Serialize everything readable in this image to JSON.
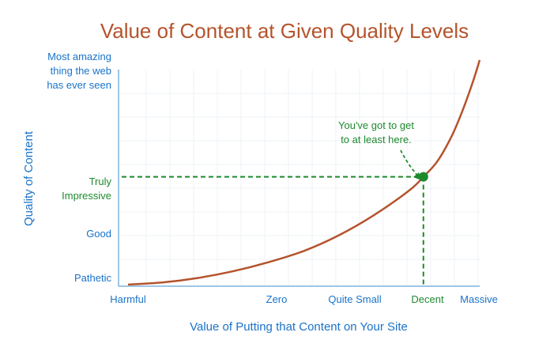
{
  "chart_data": {
    "type": "line",
    "title": "Value of Content at Given Quality Levels",
    "xlabel": "Value of Putting that Content on Your Site",
    "ylabel": "Quality of Content",
    "x_tick_labels": [
      "Harmful",
      "Zero",
      "Quite Small",
      "Decent",
      "Massive"
    ],
    "y_tick_labels": [
      [
        "Most amazing",
        "thing the web",
        "has ever seen"
      ],
      [
        "Truly",
        "Impressive"
      ],
      [
        "Good"
      ],
      [
        "Pathetic"
      ]
    ],
    "grid": true,
    "series": [
      {
        "points": [
          {
            "x": 0.0,
            "y": 0.0
          },
          {
            "x": 0.1,
            "y": 0.01
          },
          {
            "x": 0.2,
            "y": 0.03
          },
          {
            "x": 0.3,
            "y": 0.06
          },
          {
            "x": 0.4,
            "y": 0.1
          },
          {
            "x": 0.5,
            "y": 0.15
          },
          {
            "x": 0.6,
            "y": 0.22
          },
          {
            "x": 0.7,
            "y": 0.31
          },
          {
            "x": 0.8,
            "y": 0.42
          },
          {
            "x": 0.84,
            "y": 0.48
          },
          {
            "x": 0.88,
            "y": 0.55
          },
          {
            "x": 0.92,
            "y": 0.66
          },
          {
            "x": 0.95,
            "y": 0.77
          },
          {
            "x": 0.98,
            "y": 0.9
          },
          {
            "x": 1.0,
            "y": 1.0
          }
        ]
      }
    ],
    "annotation": {
      "text": [
        "You've got to get",
        "to at least here."
      ],
      "point": {
        "x": 0.84,
        "y": 0.48
      }
    },
    "colors": {
      "curve": "#b5532c",
      "title": "#b5532c",
      "axis_text": "#1a73c9",
      "highlight": "#1e8a2e",
      "axis_line": "#7bb3e0",
      "grid": "#eef3f7"
    }
  }
}
